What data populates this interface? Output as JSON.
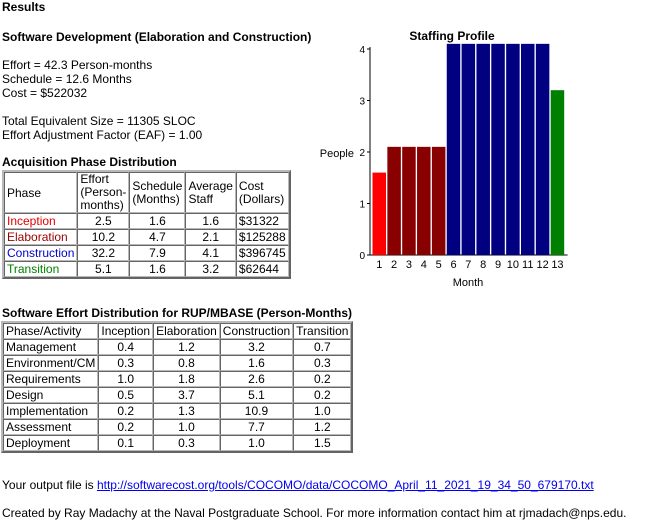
{
  "heading": "Results",
  "section_title": "Software Development (Elaboration and Construction)",
  "summary": {
    "effort": "Effort = 42.3 Person-months",
    "schedule": "Schedule = 12.6 Months",
    "cost": "Cost = $522032",
    "size": "Total Equivalent Size = 11305 SLOC",
    "eaf": "Effort Adjustment Factor (EAF) = 1.00"
  },
  "acquisition": {
    "title": "Acquisition Phase Distribution",
    "headers": [
      "Phase",
      "Effort (Person-months)",
      "Schedule (Months)",
      "Average Staff",
      "Cost (Dollars)"
    ],
    "rows": [
      {
        "phase": "Inception",
        "color": "#e00000",
        "effort": "2.5",
        "schedule": "1.6",
        "staff": "1.6",
        "cost": "$31322"
      },
      {
        "phase": "Elaboration",
        "color": "#990000",
        "effort": "10.2",
        "schedule": "4.7",
        "staff": "2.1",
        "cost": "$125288"
      },
      {
        "phase": "Construction",
        "color": "#0000cc",
        "effort": "32.2",
        "schedule": "7.9",
        "staff": "4.1",
        "cost": "$396745"
      },
      {
        "phase": "Transition",
        "color": "#008000",
        "effort": "5.1",
        "schedule": "1.6",
        "staff": "3.2",
        "cost": "$62644"
      }
    ]
  },
  "rup": {
    "title": "Software Effort Distribution for RUP/MBASE (Person-Months)",
    "headers": [
      "Phase/Activity",
      "Inception",
      "Elaboration",
      "Construction",
      "Transition"
    ],
    "rows": [
      [
        "Management",
        "0.4",
        "1.2",
        "3.2",
        "0.7"
      ],
      [
        "Environment/CM",
        "0.3",
        "0.8",
        "1.6",
        "0.3"
      ],
      [
        "Requirements",
        "1.0",
        "1.8",
        "2.6",
        "0.2"
      ],
      [
        "Design",
        "0.5",
        "3.7",
        "5.1",
        "0.2"
      ],
      [
        "Implementation",
        "0.2",
        "1.3",
        "10.9",
        "1.0"
      ],
      [
        "Assessment",
        "0.2",
        "1.0",
        "7.7",
        "1.2"
      ],
      [
        "Deployment",
        "0.1",
        "0.3",
        "1.0",
        "1.5"
      ]
    ]
  },
  "output": {
    "prefix": "Your output file is ",
    "link": "http://softwarecost.org/tools/COCOMO/data/COCOMO_April_11_2021_19_34_50_679170.txt"
  },
  "footer": "Created by Ray Madachy at the Naval Postgraduate School. For more information contact him at rjmadach@nps.edu.",
  "chart_data": {
    "type": "bar",
    "title": "Staffing Profile",
    "xlabel": "Month",
    "ylabel": "People",
    "categories": [
      "1",
      "2",
      "3",
      "4",
      "5",
      "6",
      "7",
      "8",
      "9",
      "10",
      "11",
      "12",
      "13"
    ],
    "values": [
      1.6,
      2.1,
      2.1,
      2.1,
      2.1,
      4.1,
      4.1,
      4.1,
      4.1,
      4.1,
      4.1,
      4.1,
      3.2
    ],
    "colors": [
      "#ff0000",
      "#880000",
      "#880000",
      "#880000",
      "#880000",
      "#000080",
      "#000080",
      "#000080",
      "#000080",
      "#000080",
      "#000080",
      "#000080",
      "#008000"
    ],
    "ylim": [
      0,
      4
    ],
    "yticks": [
      "0",
      "1",
      "2",
      "3",
      "4"
    ],
    "grid": false,
    "legend": "none"
  }
}
